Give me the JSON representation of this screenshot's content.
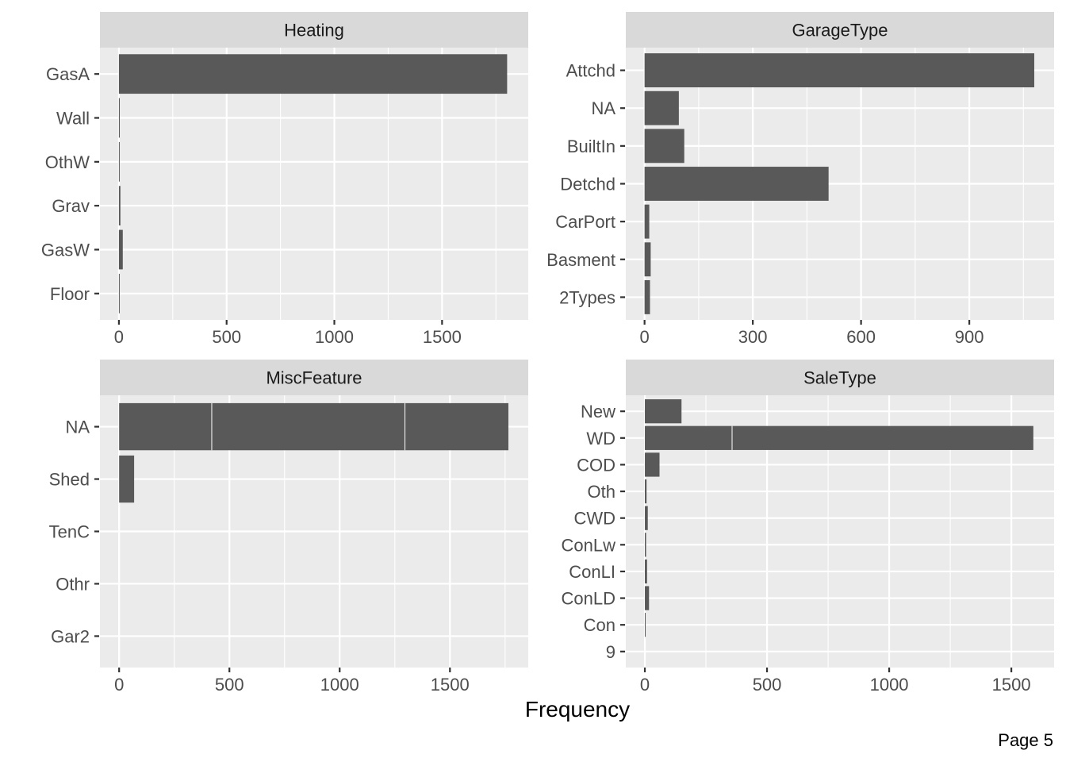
{
  "xlabel": "Frequency",
  "page_label": "Page 5",
  "chart_data": [
    {
      "type": "bar",
      "title": "Heating",
      "categories": [
        "Floor",
        "GasW",
        "Grav",
        "OthW",
        "Wall",
        "GasA"
      ],
      "values": [
        1,
        18,
        7,
        2,
        4,
        1802
      ],
      "xlim": [
        -88,
        1900
      ],
      "xticks": [
        0,
        500,
        1000,
        1500
      ],
      "xtick_labels": [
        "0",
        "500",
        "1000",
        "1500"
      ],
      "minor_xticks": [
        250,
        750,
        1250,
        1750
      ],
      "segment_breaks": []
    },
    {
      "type": "bar",
      "title": "GarageType",
      "categories": [
        "2Types",
        "Basment",
        "CarPort",
        "Detchd",
        "BuiltIn",
        "NA"
      ],
      "display_order": [
        "Attchd",
        "NA",
        "BuiltIn",
        "Detchd",
        "CarPort",
        "Basment",
        "2Types"
      ],
      "all_categories": [
        "2Types",
        "Basment",
        "CarPort",
        "Detchd",
        "BuiltIn",
        "NA",
        "Attchd"
      ],
      "all_values": [
        15,
        17,
        13,
        510,
        110,
        95,
        1080
      ],
      "xlim": [
        -52,
        1135
      ],
      "xticks": [
        0,
        300,
        600,
        900
      ],
      "xtick_labels": [
        "0",
        "300",
        "600",
        "900"
      ],
      "minor_xticks": [
        150,
        450,
        750,
        1050
      ],
      "segment_breaks": []
    },
    {
      "type": "bar",
      "title": "MiscFeature",
      "categories": [
        "Gar2",
        "Othr",
        "TenC",
        "Shed",
        "NA"
      ],
      "values": [
        0,
        0,
        0,
        68,
        1765
      ],
      "xlim": [
        -87,
        1855
      ],
      "xticks": [
        0,
        500,
        1000,
        1500
      ],
      "xtick_labels": [
        "0",
        "500",
        "1000",
        "1500"
      ],
      "minor_xticks": [
        250,
        750,
        1250,
        1750
      ],
      "segment_breaks": [
        {
          "category": "NA",
          "at": [
            420,
            1296
          ]
        }
      ]
    },
    {
      "type": "bar",
      "title": "SaleType",
      "categories": [
        "9",
        "Con",
        "ConLD",
        "ConLI",
        "ConLw",
        "CWD",
        "Oth",
        "COD",
        "WD",
        "New"
      ],
      "values": [
        0,
        2,
        17,
        9,
        5,
        12,
        7,
        60,
        1590,
        150
      ],
      "xlim": [
        -78,
        1675
      ],
      "xticks": [
        0,
        500,
        1000,
        1500
      ],
      "xtick_labels": [
        "0",
        "500",
        "1000",
        "1500"
      ],
      "minor_xticks": [
        250,
        750,
        1250
      ],
      "segment_breaks": [
        {
          "category": "WD",
          "at": [
            357
          ]
        }
      ]
    }
  ],
  "colors": {
    "panel_bg": "#ebebeb",
    "strip_bg": "#d9d9d9",
    "bar_fill": "#595959",
    "grid": "#ffffff",
    "tick": "#333333"
  }
}
